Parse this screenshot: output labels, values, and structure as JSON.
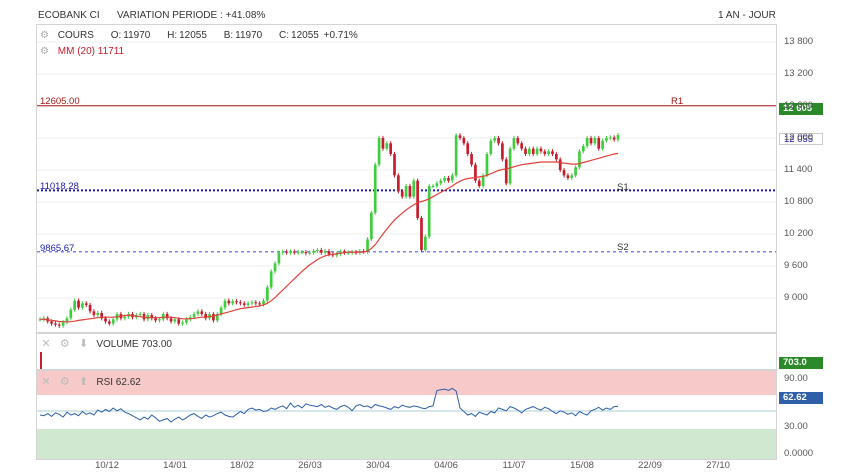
{
  "header": {
    "instrument": "ECOBANK CI",
    "variation": "VARIATION PERIODE : +41.08%",
    "period": "1 AN - JOUR"
  },
  "price_panel": {
    "series_label": "COURS",
    "open_key": "O:",
    "open": "11970",
    "high_key": "H:",
    "high": "12055",
    "low_key": "B:",
    "low": "11970",
    "close_key": "C:",
    "close": "12055",
    "change": "+0.71%",
    "ma_label": "MM (20) 11711",
    "last_price_tag": "12 055",
    "r1_tag": "12 605",
    "levels": [
      {
        "name": "R1",
        "value_label": "12605.00",
        "value": 12605,
        "color": "#a31515"
      },
      {
        "name": "S1",
        "value_label": "11018.28",
        "value": 11018.28,
        "color": "#1a1aa6"
      },
      {
        "name": "S2",
        "value_label": "9865.67",
        "value": 9865.67,
        "color": "#5a5ad8"
      }
    ]
  },
  "volume_panel": {
    "label": "VOLUME 703.00",
    "tag": "703.0"
  },
  "rsi_panel": {
    "label": "RSI 62.62",
    "tag": "62.62",
    "ticks": [
      "90.00",
      "30.00",
      "0.0000"
    ]
  },
  "colors": {
    "up": "#3fcc3f",
    "down": "#c61c2c",
    "ma": "#e0413a",
    "rsi_line": "#2e5fa8",
    "overbought_zone": "#f8c9c9",
    "oversold_zone": "#cfe8cf",
    "price_tag_bg": "#2a8a2a",
    "rsi_tag_bg": "#2e5fa8"
  },
  "chart_data": {
    "type": "candlestick",
    "y_ticks": [
      13800,
      13200,
      12600,
      12000,
      11400,
      10800,
      10200,
      9600,
      9000
    ],
    "y_tick_labels": [
      "13 800",
      "13 200",
      "12 600",
      "12 000",
      "11 400",
      "10 800",
      "10 200",
      "9 600",
      "9 000"
    ],
    "ylim": [
      8750,
      13920
    ],
    "x_tick_labels": [
      "10/12",
      "14/01",
      "18/02",
      "26/03",
      "30/04",
      "04/06",
      "11/07",
      "15/08",
      "22/09",
      "27/10"
    ],
    "closes": [
      8600,
      8620,
      8560,
      8520,
      8500,
      8480,
      8550,
      8620,
      8780,
      8950,
      8820,
      8900,
      8870,
      8750,
      8680,
      8720,
      8620,
      8560,
      8520,
      8600,
      8700,
      8620,
      8650,
      8700,
      8640,
      8680,
      8700,
      8600,
      8680,
      8620,
      8580,
      8600,
      8700,
      8620,
      8560,
      8600,
      8520,
      8540,
      8600,
      8640,
      8700,
      8750,
      8700,
      8620,
      8700,
      8580,
      8700,
      8820,
      8950,
      8900,
      8940,
      8920,
      8900,
      8870,
      8900,
      8920,
      8900,
      8880,
      8950,
      9200,
      9500,
      9650,
      9850,
      9870,
      9850,
      9870,
      9850,
      9860,
      9860,
      9840,
      9850,
      9880,
      9900,
      9850,
      9880,
      9820,
      9800,
      9830,
      9870,
      9850,
      9850,
      9860,
      9850,
      9880,
      9870,
      10100,
      10600,
      11500,
      12000,
      11800,
      11900,
      11700,
      11300,
      11000,
      10900,
      11100,
      10900,
      11200,
      10500,
      9900,
      10150,
      11100,
      11100,
      11150,
      11200,
      11250,
      11200,
      11300,
      12050,
      12000,
      11900,
      11700,
      11500,
      11200,
      11100,
      11300,
      11700,
      11950,
      12000,
      11900,
      11600,
      11150,
      11800,
      12000,
      11900,
      11800,
      11700,
      11800,
      11700,
      11800,
      11750,
      11700,
      11750,
      11700,
      11600,
      11400,
      11300,
      11250,
      11300,
      11450,
      11750,
      11850,
      12000,
      11900,
      12000,
      11800,
      11950,
      12000,
      12010,
      11970,
      12055
    ],
    "ma20": [
      8600,
      8600,
      8590,
      8580,
      8570,
      8560,
      8555,
      8550,
      8555,
      8565,
      8580,
      8590,
      8600,
      8610,
      8620,
      8630,
      8640,
      8640,
      8640,
      8640,
      8650,
      8660,
      8670,
      8680,
      8670,
      8660,
      8650,
      8640,
      8630,
      8630,
      8630,
      8630,
      8640,
      8640,
      8640,
      8630,
      8620,
      8610,
      8610,
      8610,
      8620,
      8630,
      8640,
      8640,
      8650,
      8660,
      8680,
      8700,
      8720,
      8740,
      8760,
      8780,
      8800,
      8810,
      8820,
      8830,
      8840,
      8850,
      8870,
      8900,
      8950,
      9010,
      9080,
      9150,
      9220,
      9290,
      9360,
      9430,
      9500,
      9560,
      9620,
      9670,
      9720,
      9760,
      9790,
      9810,
      9820,
      9830,
      9840,
      9850,
      9860,
      9860,
      9860,
      9860,
      9860,
      9880,
      9930,
      10000,
      10100,
      10200,
      10290,
      10380,
      10460,
      10530,
      10590,
      10650,
      10700,
      10750,
      10790,
      10810,
      10830,
      10860,
      10900,
      10940,
      10980,
      11020,
      11060,
      11100,
      11150,
      11190,
      11220,
      11240,
      11250,
      11260,
      11270,
      11280,
      11300,
      11330,
      11360,
      11390,
      11410,
      11420,
      11440,
      11460,
      11480,
      11500,
      11510,
      11520,
      11530,
      11540,
      11550,
      11550,
      11550,
      11550,
      11550,
      11540,
      11530,
      11520,
      11510,
      11510,
      11520,
      11540,
      11560,
      11580,
      11600,
      11620,
      11640,
      11660,
      11680,
      11700,
      11711
    ],
    "rsi": [
      50,
      49,
      52,
      48,
      53,
      51,
      47,
      54,
      50,
      52,
      49,
      55,
      51,
      53,
      50,
      57,
      54,
      58,
      55,
      60,
      56,
      59,
      54,
      52,
      49,
      46,
      43,
      47,
      44,
      50,
      46,
      41,
      43,
      45,
      40,
      44,
      47,
      43,
      46,
      50,
      52,
      48,
      45,
      50,
      47,
      49,
      52,
      54,
      50,
      48,
      47,
      51,
      55,
      52,
      58,
      60,
      57,
      58,
      55,
      56,
      60,
      58,
      61,
      63,
      59,
      67,
      61,
      64,
      60,
      66,
      64,
      63,
      62,
      65,
      61,
      63,
      60,
      58,
      62,
      64,
      61,
      56,
      63,
      65,
      62,
      63,
      60,
      65,
      63,
      62,
      60,
      58,
      62,
      60,
      64,
      62,
      61,
      63,
      62,
      60,
      59,
      62,
      63,
      85,
      86,
      87,
      85,
      88,
      84,
      60,
      55,
      50,
      52,
      48,
      54,
      52,
      50,
      55,
      53,
      60,
      58,
      56,
      62,
      60,
      57,
      53,
      58,
      60,
      62,
      59,
      57,
      61,
      59,
      55,
      52,
      56,
      54,
      51,
      53,
      49,
      55,
      52,
      50,
      56,
      58,
      61,
      57,
      60,
      58,
      62,
      62.62
    ],
    "volume_last": 703.0
  }
}
